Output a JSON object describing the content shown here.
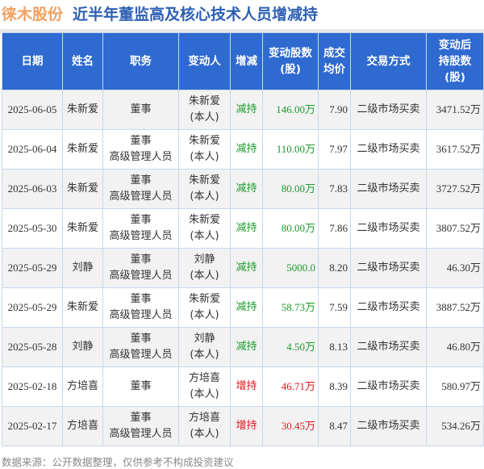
{
  "title": {
    "company": "徕木股份",
    "text": "近半年董监高及核心技术人员增减持"
  },
  "headers": [
    "日期",
    "姓名",
    "职务",
    "变动人",
    "增减",
    "变动股数\n(股)",
    "成交\n均价",
    "交易方式",
    "变动后\n持股数\n(股)"
  ],
  "rows": [
    {
      "date": "2025-06-05",
      "name": "朱新爱",
      "role": "董事",
      "actor": "朱新爱\n(本人)",
      "change": "减持",
      "shares": "146.00万",
      "price": "7.90",
      "method": "二级市场买卖",
      "after": "3471.52万"
    },
    {
      "date": "2025-06-04",
      "name": "朱新爱",
      "role": "董事\n高级管理人员",
      "actor": "朱新爱\n(本人)",
      "change": "减持",
      "shares": "110.00万",
      "price": "7.97",
      "method": "二级市场买卖",
      "after": "3617.52万"
    },
    {
      "date": "2025-06-03",
      "name": "朱新爱",
      "role": "董事\n高级管理人员",
      "actor": "朱新爱\n(本人)",
      "change": "减持",
      "shares": "80.00万",
      "price": "7.83",
      "method": "二级市场买卖",
      "after": "3727.52万"
    },
    {
      "date": "2025-05-30",
      "name": "朱新爱",
      "role": "董事\n高级管理人员",
      "actor": "朱新爱\n(本人)",
      "change": "减持",
      "shares": "80.00万",
      "price": "7.86",
      "method": "二级市场买卖",
      "after": "3807.52万"
    },
    {
      "date": "2025-05-29",
      "name": "刘静",
      "role": "董事\n高级管理人员",
      "actor": "刘静\n(本人)",
      "change": "减持",
      "shares": "5000.0",
      "price": "8.20",
      "method": "二级市场买卖",
      "after": "46.30万"
    },
    {
      "date": "2025-05-29",
      "name": "朱新爱",
      "role": "董事\n高级管理人员",
      "actor": "朱新爱\n(本人)",
      "change": "减持",
      "shares": "58.73万",
      "price": "7.59",
      "method": "二级市场买卖",
      "after": "3887.52万"
    },
    {
      "date": "2025-05-28",
      "name": "刘静",
      "role": "董事\n高级管理人员",
      "actor": "刘静\n(本人)",
      "change": "减持",
      "shares": "4.50万",
      "price": "8.13",
      "method": "二级市场买卖",
      "after": "46.80万"
    },
    {
      "date": "2025-02-18",
      "name": "方培喜",
      "role": "董事",
      "actor": "方培喜\n(本人)",
      "change": "增持",
      "shares": "46.71万",
      "price": "8.39",
      "method": "二级市场买卖",
      "after": "580.97万"
    },
    {
      "date": "2025-02-17",
      "name": "方培喜",
      "role": "董事\n高级管理人员",
      "actor": "方培喜\n(本人)",
      "change": "增持",
      "shares": "30.45万",
      "price": "8.47",
      "method": "二级市场买卖",
      "after": "534.26万"
    }
  ],
  "colors": {
    "header_bg": "#2f6ad0",
    "decrease": "#1a9a2a",
    "increase": "#e0141e",
    "company": "#f0a060",
    "title": "#2d5fb4"
  },
  "source": "数据来源：公开数据整理，仅供参考不构成投资建议"
}
